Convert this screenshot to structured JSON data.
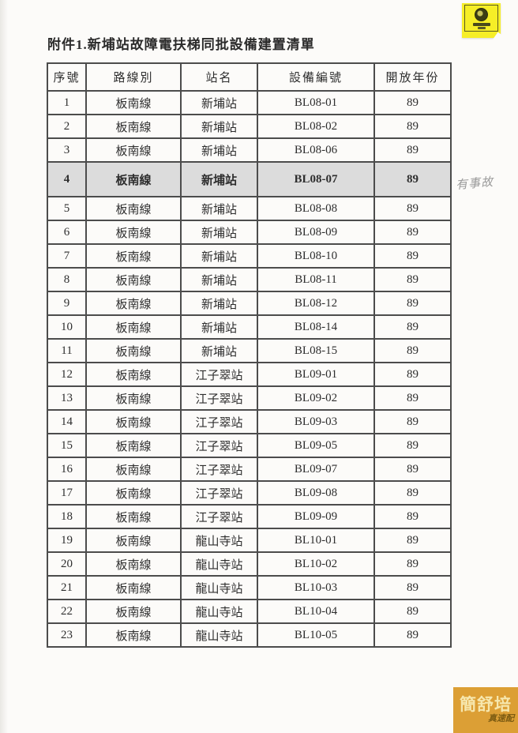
{
  "document": {
    "title": "附件1.新埔站故障電扶梯同批設備建置清單"
  },
  "table": {
    "headers": [
      "序號",
      "路線別",
      "站名",
      "設備編號",
      "開放年份"
    ],
    "rows": [
      {
        "no": "1",
        "line": "板南線",
        "station": "新埔站",
        "equipment_id": "BL08-01",
        "year": "89"
      },
      {
        "no": "2",
        "line": "板南線",
        "station": "新埔站",
        "equipment_id": "BL08-02",
        "year": "89"
      },
      {
        "no": "3",
        "line": "板南線",
        "station": "新埔站",
        "equipment_id": "BL08-06",
        "year": "89"
      },
      {
        "no": "4",
        "line": "板南線",
        "station": "新埔站",
        "equipment_id": "BL08-07",
        "year": "89",
        "highlighted": true
      },
      {
        "no": "5",
        "line": "板南線",
        "station": "新埔站",
        "equipment_id": "BL08-08",
        "year": "89"
      },
      {
        "no": "6",
        "line": "板南線",
        "station": "新埔站",
        "equipment_id": "BL08-09",
        "year": "89"
      },
      {
        "no": "7",
        "line": "板南線",
        "station": "新埔站",
        "equipment_id": "BL08-10",
        "year": "89"
      },
      {
        "no": "8",
        "line": "板南線",
        "station": "新埔站",
        "equipment_id": "BL08-11",
        "year": "89"
      },
      {
        "no": "9",
        "line": "板南線",
        "station": "新埔站",
        "equipment_id": "BL08-12",
        "year": "89"
      },
      {
        "no": "10",
        "line": "板南線",
        "station": "新埔站",
        "equipment_id": "BL08-14",
        "year": "89"
      },
      {
        "no": "11",
        "line": "板南線",
        "station": "新埔站",
        "equipment_id": "BL08-15",
        "year": "89"
      },
      {
        "no": "12",
        "line": "板南線",
        "station": "江子翠站",
        "equipment_id": "BL09-01",
        "year": "89"
      },
      {
        "no": "13",
        "line": "板南線",
        "station": "江子翠站",
        "equipment_id": "BL09-02",
        "year": "89"
      },
      {
        "no": "14",
        "line": "板南線",
        "station": "江子翠站",
        "equipment_id": "BL09-03",
        "year": "89"
      },
      {
        "no": "15",
        "line": "板南線",
        "station": "江子翠站",
        "equipment_id": "BL09-05",
        "year": "89"
      },
      {
        "no": "16",
        "line": "板南線",
        "station": "江子翠站",
        "equipment_id": "BL09-07",
        "year": "89"
      },
      {
        "no": "17",
        "line": "板南線",
        "station": "江子翠站",
        "equipment_id": "BL09-08",
        "year": "89"
      },
      {
        "no": "18",
        "line": "板南線",
        "station": "江子翠站",
        "equipment_id": "BL09-09",
        "year": "89"
      },
      {
        "no": "19",
        "line": "板南線",
        "station": "龍山寺站",
        "equipment_id": "BL10-01",
        "year": "89"
      },
      {
        "no": "20",
        "line": "板南線",
        "station": "龍山寺站",
        "equipment_id": "BL10-02",
        "year": "89"
      },
      {
        "no": "21",
        "line": "板南線",
        "station": "龍山寺站",
        "equipment_id": "BL10-03",
        "year": "89"
      },
      {
        "no": "22",
        "line": "板南線",
        "station": "龍山寺站",
        "equipment_id": "BL10-04",
        "year": "89"
      },
      {
        "no": "23",
        "line": "板南線",
        "station": "龍山寺站",
        "equipment_id": "BL10-05",
        "year": "89"
      }
    ]
  },
  "annotations": {
    "handwritten_note": "有事故"
  },
  "watermark": {
    "name": "簡舒培",
    "tagline": "真速配",
    "background": "#dc9f35"
  },
  "colors": {
    "highlight_row": "#dcdcdc",
    "table_border": "#4c4c4c",
    "sticker_yellow": "#f6ee27"
  }
}
